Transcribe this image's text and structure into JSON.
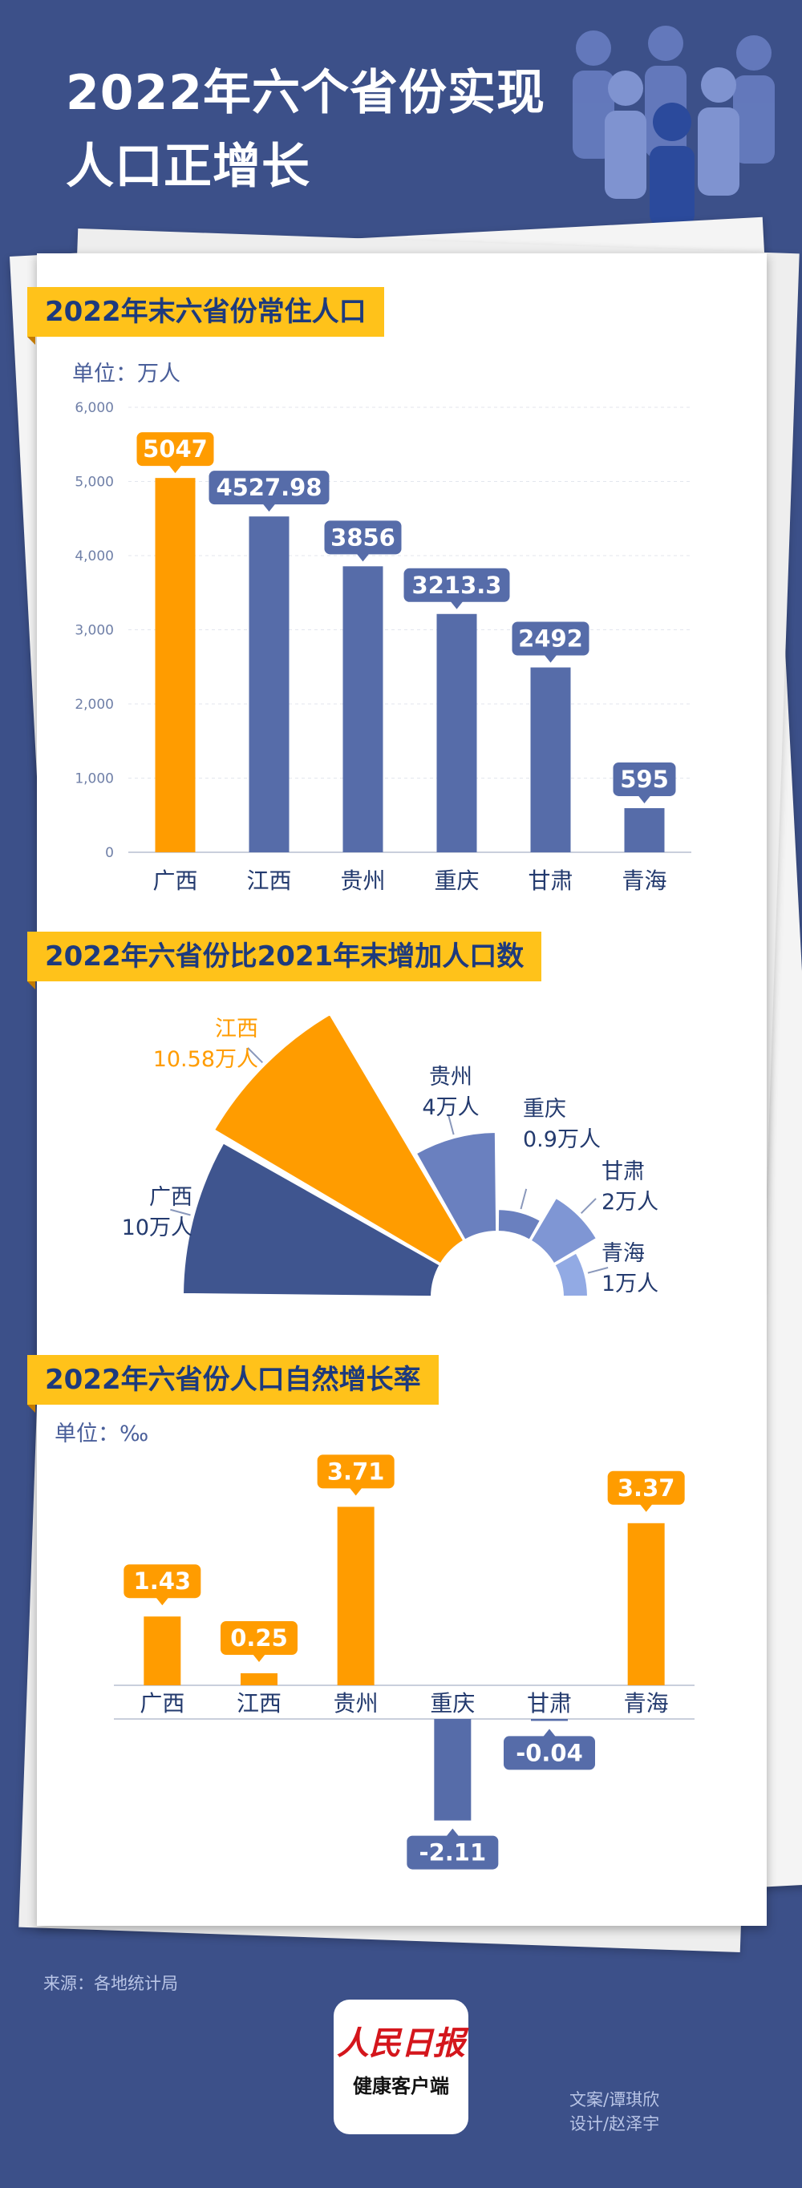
{
  "title_lines": [
    "2022年六个省份实现",
    "人口正增长"
  ],
  "colors": {
    "background": "#3c5089",
    "highlight": "#ff9c00",
    "primary": "#566ca9",
    "label_bg": "#ffc21a",
    "label_text": "#1d3a7d",
    "light": "#8aa4de"
  },
  "sections": {
    "population": {
      "label": "2022年末六省份常住人口",
      "unit": "单位：万人"
    },
    "increase": {
      "label": "2022年六省份比2021年末增加人口数"
    },
    "growth": {
      "label": "2022年六省份人口自然增长率",
      "unit": "单位：‰"
    }
  },
  "footer": {
    "source": "来源：各地统计局",
    "logo_top": "人民日报",
    "logo_bottom": "健康客户端",
    "credit_text": "文案/谭琪欣",
    "credit_design": "设计/赵泽宇"
  },
  "chart_data": [
    {
      "type": "bar",
      "title": "2022年末六省份常住人口",
      "categories": [
        "广西",
        "江西",
        "贵州",
        "重庆",
        "甘肃",
        "青海"
      ],
      "values": [
        5047,
        4527.98,
        3856,
        3213.3,
        2492,
        595
      ],
      "value_labels": [
        "5047",
        "4527.98",
        "3856",
        "3213.3",
        "2492",
        "595"
      ],
      "ylim": [
        0,
        6000
      ],
      "yticks": [
        0,
        1000,
        2000,
        3000,
        4000,
        5000,
        6000
      ],
      "ytick_labels": [
        "0",
        "1,000",
        "2,000",
        "3,000",
        "4,000",
        "5,000",
        "6,000"
      ],
      "highlight_index": 0,
      "grid": true
    },
    {
      "type": "pie",
      "variant": "nightingale-half-rose",
      "title": "2022年六省份比2021年末增加人口数",
      "categories": [
        "广西",
        "江西",
        "贵州",
        "重庆",
        "甘肃",
        "青海"
      ],
      "values": [
        10,
        10.58,
        4,
        0.9,
        2,
        1
      ],
      "value_labels": [
        "10万人",
        "10.58万人",
        "4万人",
        "0.9万人",
        "2万人",
        "1万人"
      ],
      "highlight_index": 1
    },
    {
      "type": "bar",
      "title": "2022年六省份人口自然增长率",
      "categories": [
        "广西",
        "江西",
        "贵州",
        "重庆",
        "甘肃",
        "青海"
      ],
      "values": [
        1.43,
        0.25,
        3.71,
        -2.11,
        -0.04,
        3.37
      ],
      "value_labels": [
        "1.43",
        "0.25",
        "3.71",
        "-2.11",
        "-0.04",
        "3.37"
      ],
      "unit": "‰"
    }
  ]
}
